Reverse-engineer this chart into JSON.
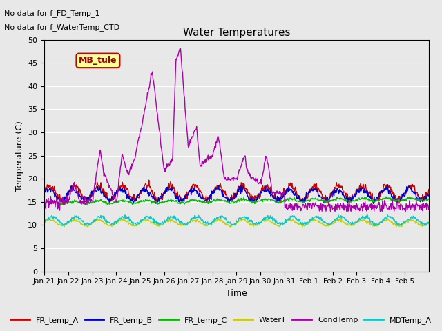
{
  "title": "Water Temperatures",
  "xlabel": "Time",
  "ylabel": "Temperature (C)",
  "ylim": [
    0,
    50
  ],
  "yticks": [
    0,
    5,
    10,
    15,
    20,
    25,
    30,
    35,
    40,
    45,
    50
  ],
  "fig_bg_color": "#e8e8e8",
  "plot_bg_color": "#e8e8e8",
  "annotations": [
    "No data for f_FD_Temp_1",
    "No data for f_WaterTemp_CTD"
  ],
  "legend_box_label": "MB_tule",
  "series": {
    "FR_temp_A": {
      "color": "#cc0000",
      "lw": 1.0
    },
    "FR_temp_B": {
      "color": "#0000cc",
      "lw": 1.0
    },
    "FR_temp_C": {
      "color": "#00bb00",
      "lw": 1.0
    },
    "WaterT": {
      "color": "#cccc00",
      "lw": 1.0
    },
    "CondTemp": {
      "color": "#aa00aa",
      "lw": 1.0
    },
    "MDTemp_A": {
      "color": "#00cccc",
      "lw": 1.0
    }
  },
  "xtick_labels": [
    "Jan 21",
    "Jan 22",
    "Jan 23",
    "Jan 24",
    "Jan 25",
    "Jan 26",
    "Jan 27",
    "Jan 28",
    "Jan 29",
    "Jan 30",
    "Jan 31",
    "Feb 1",
    "Feb 2",
    "Feb 3",
    "Feb 4",
    "Feb 5"
  ],
  "n_days": 16
}
